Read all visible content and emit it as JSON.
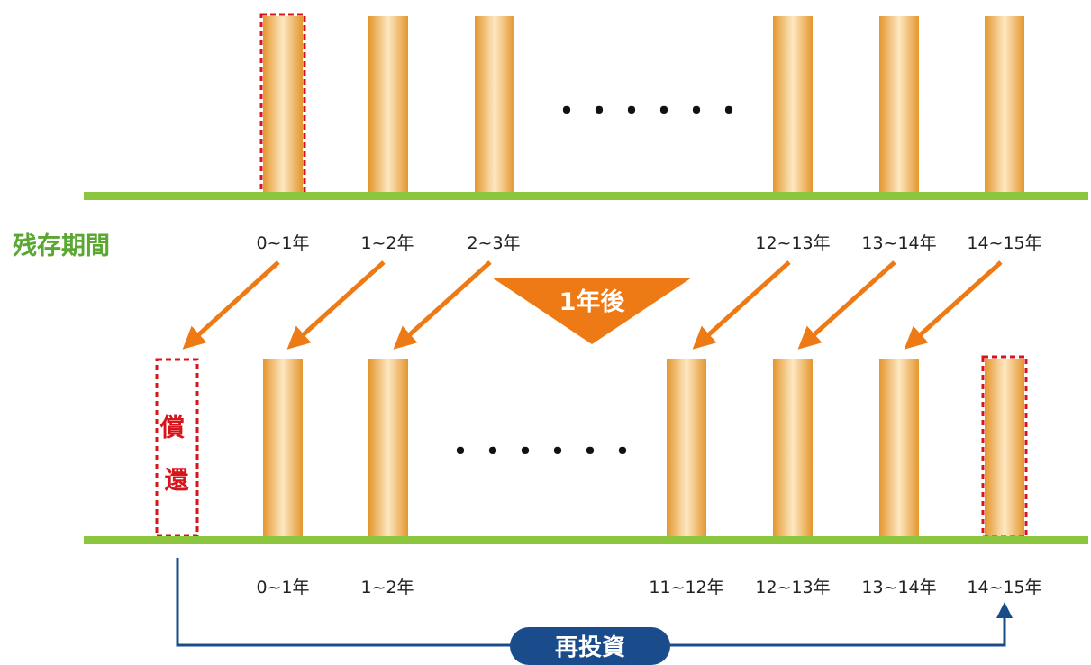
{
  "axis_label": "残存期間",
  "top_row": {
    "labels": [
      "0~1年",
      "1~2年",
      "2~3年",
      "12~13年",
      "13~14年",
      "14~15年"
    ],
    "ellipsis": "・・・・・・"
  },
  "shift": {
    "label": "1年後"
  },
  "bottom_row": {
    "redeemed_label": "償還",
    "labels": [
      "0~1年",
      "1~2年",
      "11~12年",
      "12~13年",
      "13~14年",
      "14~15年"
    ],
    "ellipsis": "・・・・・・"
  },
  "reinvest": {
    "label": "再投資"
  },
  "colors": {
    "green_line": "#8cc63f",
    "axis_label": "#5aa832",
    "orange_arrow": "#ee7a16",
    "red_dash": "#d8141b",
    "blue_line": "#1a4c8b",
    "bar_edge": "#e4962d",
    "bar_center": "#fde8c2"
  }
}
